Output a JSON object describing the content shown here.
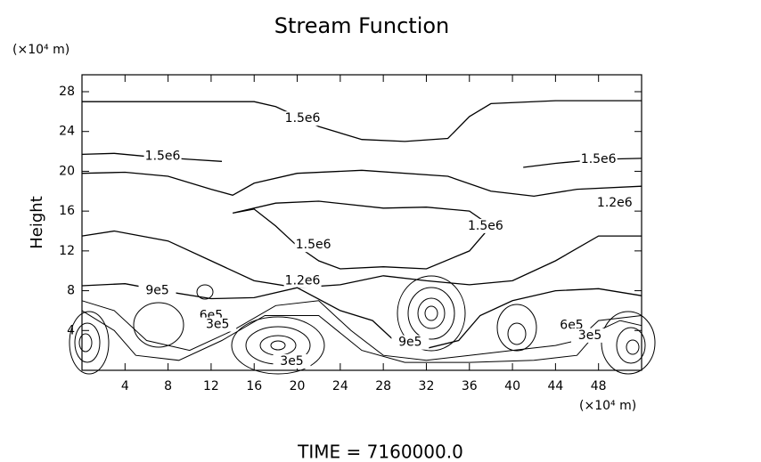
{
  "chart_data": {
    "type": "contour",
    "title": "Stream Function",
    "y_unit_label": "(×10⁴ m)",
    "x_unit_label": "(×10⁴ m)",
    "ylabel": "Height",
    "footer": "TIME = 7160000.0",
    "xlim": [
      0,
      52
    ],
    "ylim": [
      0,
      29.7
    ],
    "xticks": [
      4,
      8,
      12,
      16,
      20,
      24,
      28,
      32,
      36,
      40,
      44,
      48
    ],
    "yticks": [
      4,
      8,
      12,
      16,
      20,
      24,
      28
    ],
    "color": "#000000",
    "contours": [
      {
        "level": 1500000,
        "label": "1.5e6",
        "lines": [
          {
            "x": [
              0,
              16,
              18,
              22,
              26,
              30,
              34,
              36,
              38,
              44,
              52
            ],
            "y": [
              27,
              27,
              26.5,
              24.5,
              23.2,
              23,
              23.3,
              25.5,
              26.8,
              27.1,
              27.1
            ]
          },
          {
            "x": [
              0,
              3,
              6,
              10,
              13
            ],
            "y": [
              21.7,
              21.8,
              21.5,
              21.2,
              21
            ]
          },
          {
            "x": [
              41,
              44,
              48,
              52
            ],
            "y": [
              20.4,
              20.8,
              21.2,
              21.3
            ]
          },
          {
            "x": [
              14,
              16,
              18,
              20,
              22,
              24,
              28,
              32,
              36,
              38,
              36,
              32,
              28,
              22,
              18,
              14
            ],
            "y": [
              15.8,
              16.2,
              14.5,
              12.5,
              11,
              10.2,
              10.4,
              10.2,
              12,
              14.5,
              16,
              16.4,
              16.3,
              17,
              16.8,
              15.8
            ]
          }
        ],
        "labels_at": [
          [
            20.5,
            25.3
          ],
          [
            7.5,
            21.5
          ],
          [
            48,
            21.2
          ],
          [
            21.5,
            12.6
          ],
          [
            37.5,
            14.5
          ]
        ]
      },
      {
        "level": 1200000,
        "label": "1.2e6",
        "lines": [
          {
            "x": [
              0,
              4,
              8,
              12,
              14,
              16,
              20,
              26,
              34,
              38,
              42,
              46,
              52
            ],
            "y": [
              19.8,
              19.9,
              19.5,
              18.2,
              17.6,
              18.8,
              19.8,
              20.1,
              19.5,
              18,
              17.5,
              18.2,
              18.5
            ]
          },
          {
            "x": [
              0,
              3,
              8,
              12,
              16,
              20,
              24,
              28,
              32,
              36,
              40,
              44,
              48,
              52
            ],
            "y": [
              13.5,
              14,
              13,
              11,
              9,
              8.3,
              8.6,
              9.5,
              9,
              8.6,
              9,
              11,
              13.5,
              13.5
            ]
          }
        ],
        "labels_at": [
          [
            20.5,
            9
          ],
          [
            49.5,
            16.8
          ]
        ]
      },
      {
        "level": 900000,
        "label": "9e5",
        "lines": [
          {
            "x": [
              0,
              4,
              8,
              12,
              16,
              20,
              24,
              27,
              29,
              32,
              35,
              37,
              40,
              44,
              48,
              52
            ],
            "y": [
              8.5,
              8.7,
              7.9,
              7.2,
              7.3,
              8.3,
              6,
              5,
              3,
              2.2,
              3,
              5.5,
              7,
              8,
              8.2,
              7.5
            ]
          }
        ],
        "labels_at": [
          [
            7,
            8
          ],
          [
            30.5,
            2.8
          ]
        ]
      },
      {
        "level": 600000,
        "label": "6e5",
        "lines": [
          {
            "x": [
              0,
              3,
              6,
              10,
              14,
              18,
              22,
              25,
              28,
              32,
              36,
              40,
              44,
              46,
              48,
              52
            ],
            "y": [
              7,
              6,
              3,
              2,
              4,
              6.5,
              7,
              4,
              1.5,
              1,
              1.5,
              2,
              2.5,
              3,
              5,
              5.5
            ]
          }
        ],
        "labels_at": [
          [
            12,
            5.5
          ],
          [
            45.5,
            4.5
          ]
        ]
      },
      {
        "level": 300000,
        "label": "3e5",
        "lines": [
          {
            "x": [
              0,
              3,
              5,
              9,
              13,
              17,
              22,
              26,
              30,
              36,
              42,
              46,
              48,
              50,
              52
            ],
            "y": [
              6,
              4,
              1.5,
              1,
              3,
              5.5,
              5.5,
              2,
              0.8,
              0.8,
              1,
              1.5,
              4,
              5,
              4.5
            ]
          }
        ],
        "labels_at": [
          [
            12.6,
            4.6
          ],
          [
            47.2,
            3.5
          ],
          [
            19.5,
            0.9
          ]
        ]
      }
    ]
  }
}
